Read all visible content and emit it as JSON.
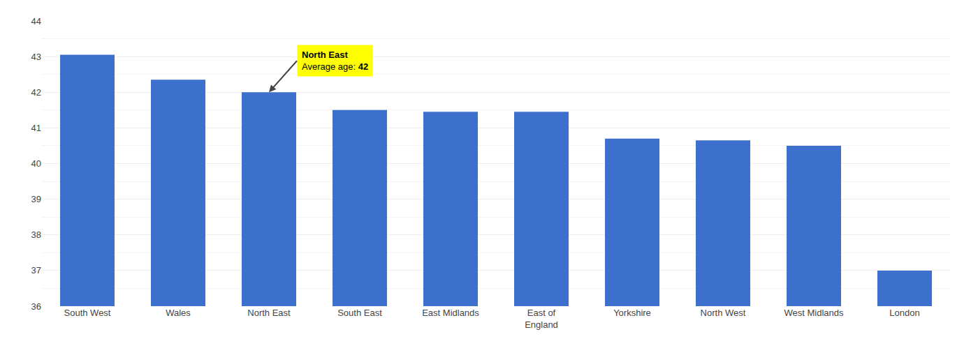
{
  "chart_data": {
    "type": "bar",
    "categories": [
      "South West",
      "Wales",
      "North East",
      "South East",
      "East Midlands",
      "East of\nEngland",
      "Yorkshire",
      "North West",
      "West Midlands",
      "London"
    ],
    "values": [
      43.05,
      42.35,
      42.0,
      41.5,
      41.45,
      41.45,
      40.7,
      40.65,
      40.5,
      37.0
    ],
    "color": "#3d6fcc",
    "ylim": [
      36,
      44
    ],
    "yticks": [
      36,
      37,
      38,
      39,
      40,
      41,
      42,
      43,
      44
    ],
    "grid": true,
    "annotations": [
      {
        "category": "North East",
        "title": "North East",
        "text": "Average age:",
        "value": 42,
        "color": "#ffff00"
      }
    ]
  }
}
